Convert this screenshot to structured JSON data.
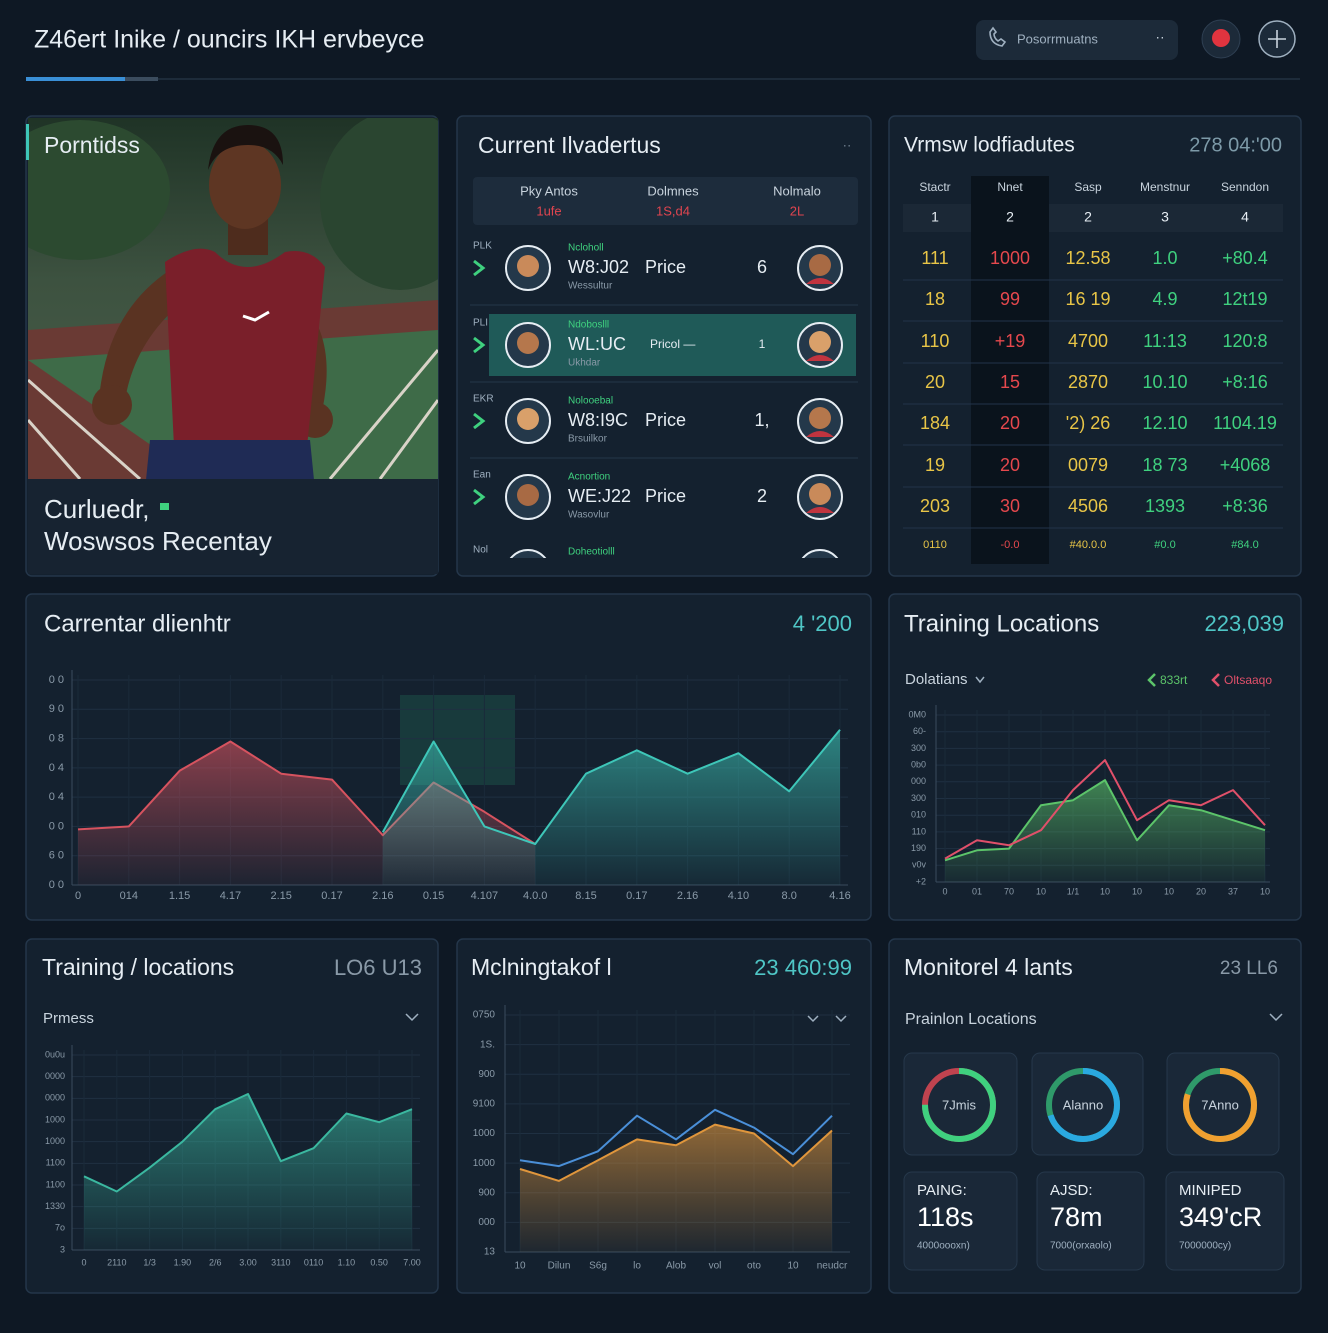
{
  "header": {
    "title": "Z46ert Inike / ouncirs IKH ervbeyce",
    "search": "Posorrmuatns"
  },
  "profile": {
    "title": "Porntidss",
    "caption": [
      "Curluedr,",
      "Woswsos Recentay"
    ]
  },
  "athletes": {
    "title": "Current Ilvadertus",
    "columns": [
      "Pky Antos",
      "Dolmnes",
      "Nolmalo"
    ],
    "column_values": [
      "1ufe",
      "1S,d4",
      "2L"
    ],
    "rows": [
      {
        "tag": "PLK",
        "team": "Ncloholl",
        "name": "W8:J02",
        "label": "Price",
        "rank": "6",
        "sub": "Wessultur"
      },
      {
        "tag": "PLI",
        "team": "Ndoboslll",
        "name": "WL:UC",
        "label": "Pricol —",
        "rank": "1",
        "sub": "Ukhdar"
      },
      {
        "tag": "EKR",
        "team": "Nolooebal",
        "name": "W8:I9C",
        "label": "Price",
        "rank": "1,",
        "sub": "Brsuilkor"
      },
      {
        "tag": "Ean",
        "team": "Acnortion",
        "name": "WE:J22",
        "label": "Price",
        "rank": "2",
        "sub": "Wasovlur"
      }
    ],
    "partial_row": {
      "tag": "Nol",
      "team": "Doheotiolll"
    }
  },
  "stats": {
    "title": "Vrmsw lodfiadutes",
    "value": "278 04:'00",
    "columns": [
      "Stactr",
      "Nnet",
      "Sasp",
      "Menstnur",
      "Senndon"
    ],
    "column_numbers": [
      "1",
      "2",
      "2",
      "3",
      "4"
    ],
    "column_colors": [
      "#e8c547",
      "#e5484d",
      "#e8c547",
      "#3fd17f",
      "#3fd17f"
    ],
    "rows": [
      [
        "111",
        "1000",
        "12.58",
        "1.0",
        "+80.4"
      ],
      [
        "18",
        "99",
        "16 19",
        "4.9",
        "12t19"
      ],
      [
        "110",
        "+19",
        "4700",
        "11:13",
        "120:8"
      ],
      [
        "20",
        "15",
        "2870",
        "10.10",
        "+8:16"
      ],
      [
        "184",
        "20",
        "'2) 26",
        "12.10",
        "1104.19"
      ],
      [
        "19",
        "20",
        "0079",
        "18 73",
        "+4068"
      ],
      [
        "203",
        "30",
        "4506",
        "1393",
        "+8:36"
      ],
      [
        "0110",
        "-0.0",
        "#40.0.0",
        "#0.0",
        "#84.0"
      ]
    ]
  },
  "chart_data": [
    {
      "type": "area",
      "title": "Carrentar dlienhtr",
      "headline": "4 '200",
      "categories": [
        "0",
        "014",
        "1.15",
        "4.17",
        "2.15",
        "0.17",
        "2.16",
        "0.15",
        "4.107",
        "4.0.0",
        "8.15",
        "0.17",
        "2.16",
        "4.10",
        "8.0",
        "4.16"
      ],
      "series": [
        {
          "color": "#d6535f",
          "area": true,
          "values": [
            1.9,
            2.0,
            3.9,
            4.9,
            3.8,
            3.6,
            1.7,
            3.5,
            2.5,
            1.4,
            null,
            null,
            null,
            null,
            null,
            null
          ]
        },
        {
          "color": "#3ec6b8",
          "area": true,
          "values": [
            null,
            null,
            null,
            null,
            null,
            null,
            1.8,
            4.9,
            2.0,
            1.4,
            3.8,
            4.6,
            3.8,
            4.5,
            3.2,
            5.3
          ]
        }
      ],
      "ylim": [
        0,
        7
      ],
      "yticks": [
        {
          "value": 0,
          "label": "0 0"
        },
        {
          "value": 1,
          "label": "6 0"
        },
        {
          "value": 2,
          "label": "0 0"
        },
        {
          "value": 3,
          "label": "0 4"
        },
        {
          "value": 4,
          "label": "0 4"
        },
        {
          "value": 5,
          "label": "0 8"
        },
        {
          "value": 6,
          "label": "9 0"
        },
        {
          "value": 7,
          "label": "0 0"
        }
      ],
      "grid": true
    },
    {
      "type": "area",
      "title": "Training Locations",
      "headline": "223,039",
      "dropdown": "Dolatians",
      "categories": [
        "0",
        "01",
        "70",
        "10",
        "1/1",
        "10",
        "10",
        "10",
        "20",
        "37",
        "10"
      ],
      "series": [
        {
          "name": "833rt",
          "color": "#5cc46a",
          "area": true,
          "values": [
            1.3,
            1.9,
            2.0,
            4.6,
            4.9,
            6.1,
            2.5,
            4.6,
            4.3,
            3.7,
            3.1
          ]
        },
        {
          "name": "Oltsaaqo",
          "color": "#e0506a",
          "area": false,
          "values": [
            1.4,
            2.5,
            2.2,
            3.1,
            5.5,
            7.3,
            3.7,
            4.9,
            4.6,
            5.5,
            3.4
          ]
        }
      ],
      "ylim": [
        0,
        10
      ],
      "yticks": [
        {
          "value": 0,
          "label": "+2"
        },
        {
          "value": 1,
          "label": "v0v"
        },
        {
          "value": 2,
          "label": "190"
        },
        {
          "value": 3,
          "label": "110"
        },
        {
          "value": 4,
          "label": "010"
        },
        {
          "value": 5,
          "label": "300"
        },
        {
          "value": 6,
          "label": "000"
        },
        {
          "value": 7,
          "label": "0b0"
        },
        {
          "value": 8,
          "label": "300"
        },
        {
          "value": 9,
          "label": "60-"
        },
        {
          "value": 10,
          "label": "0M0"
        }
      ],
      "grid": true
    },
    {
      "type": "area",
      "title": "Training / locations",
      "headline": "LO6 U13",
      "dropdown": "Prmess",
      "categories": [
        "0",
        "2110",
        "1/3",
        "1.90",
        "2/6",
        "3.00",
        "3110",
        "0110",
        "1.10",
        "0.50",
        "7.00"
      ],
      "series": [
        {
          "color": "#3bb8a0",
          "area": true,
          "values": [
            3.4,
            2.7,
            3.8,
            5.0,
            6.5,
            7.2,
            4.1,
            4.7,
            6.3,
            5.9,
            6.5
          ]
        }
      ],
      "ylim": [
        0,
        9
      ],
      "yticks": [
        {
          "value": 0,
          "label": "3"
        },
        {
          "value": 1,
          "label": "7o"
        },
        {
          "value": 2,
          "label": "1330"
        },
        {
          "value": 3,
          "label": "1100"
        },
        {
          "value": 4,
          "label": "1100"
        },
        {
          "value": 5,
          "label": "1000"
        },
        {
          "value": 6,
          "label": "1000"
        },
        {
          "value": 7,
          "label": "0000"
        },
        {
          "value": 8,
          "label": "0000"
        },
        {
          "value": 9,
          "label": "0u0u"
        }
      ],
      "grid": true
    },
    {
      "type": "area",
      "title": "Mclningtakof l",
      "headline": "23 460:99",
      "categories": [
        "10",
        "Dilun",
        "S6g",
        "lo",
        "Alob",
        "vol",
        "oto",
        "10",
        "neudcr"
      ],
      "series": [
        {
          "color": "#e0963c",
          "area": true,
          "values": [
            2.8,
            2.4,
            3.1,
            3.8,
            3.6,
            4.3,
            4.0,
            2.9,
            4.1
          ]
        },
        {
          "color": "#4a8fd8",
          "area": false,
          "values": [
            3.1,
            2.9,
            3.4,
            4.6,
            3.8,
            4.8,
            4.2,
            3.3,
            4.6
          ]
        }
      ],
      "ylim": [
        0,
        8
      ],
      "yticks": [
        {
          "value": 0,
          "label": "13"
        },
        {
          "value": 1,
          "label": "000"
        },
        {
          "value": 2,
          "label": "900"
        },
        {
          "value": 3,
          "label": "1000"
        },
        {
          "value": 4,
          "label": "1000"
        },
        {
          "value": 5,
          "label": "9100"
        },
        {
          "value": 6,
          "label": "900"
        },
        {
          "value": 7,
          "label": "1S."
        },
        {
          "value": 8,
          "label": "0750"
        }
      ],
      "grid": true
    }
  ],
  "monitor": {
    "title": "Monitorel 4 lants",
    "value": "23 LL6",
    "dropdown": "Prainlon Locations",
    "rings": [
      {
        "label": "7Jmis",
        "value": 75,
        "color": "#3fd17f",
        "track": "#c0434f"
      },
      {
        "label": "Alanno",
        "value": 70,
        "color": "#2aa9e0",
        "track": "#2f9a6a"
      },
      {
        "label": "7Anno",
        "value": 80,
        "color": "#f0a030",
        "track": "#2f9a6a"
      }
    ],
    "cards": [
      {
        "label": "PAING:",
        "value": "118s",
        "sub": "4000oooxn)"
      },
      {
        "label": "AJSD:",
        "value": "78m",
        "sub": "7000(orxaolo)"
      },
      {
        "label": "MINIPED",
        "value": "349'cR",
        "sub": "7000000cy)"
      }
    ]
  }
}
